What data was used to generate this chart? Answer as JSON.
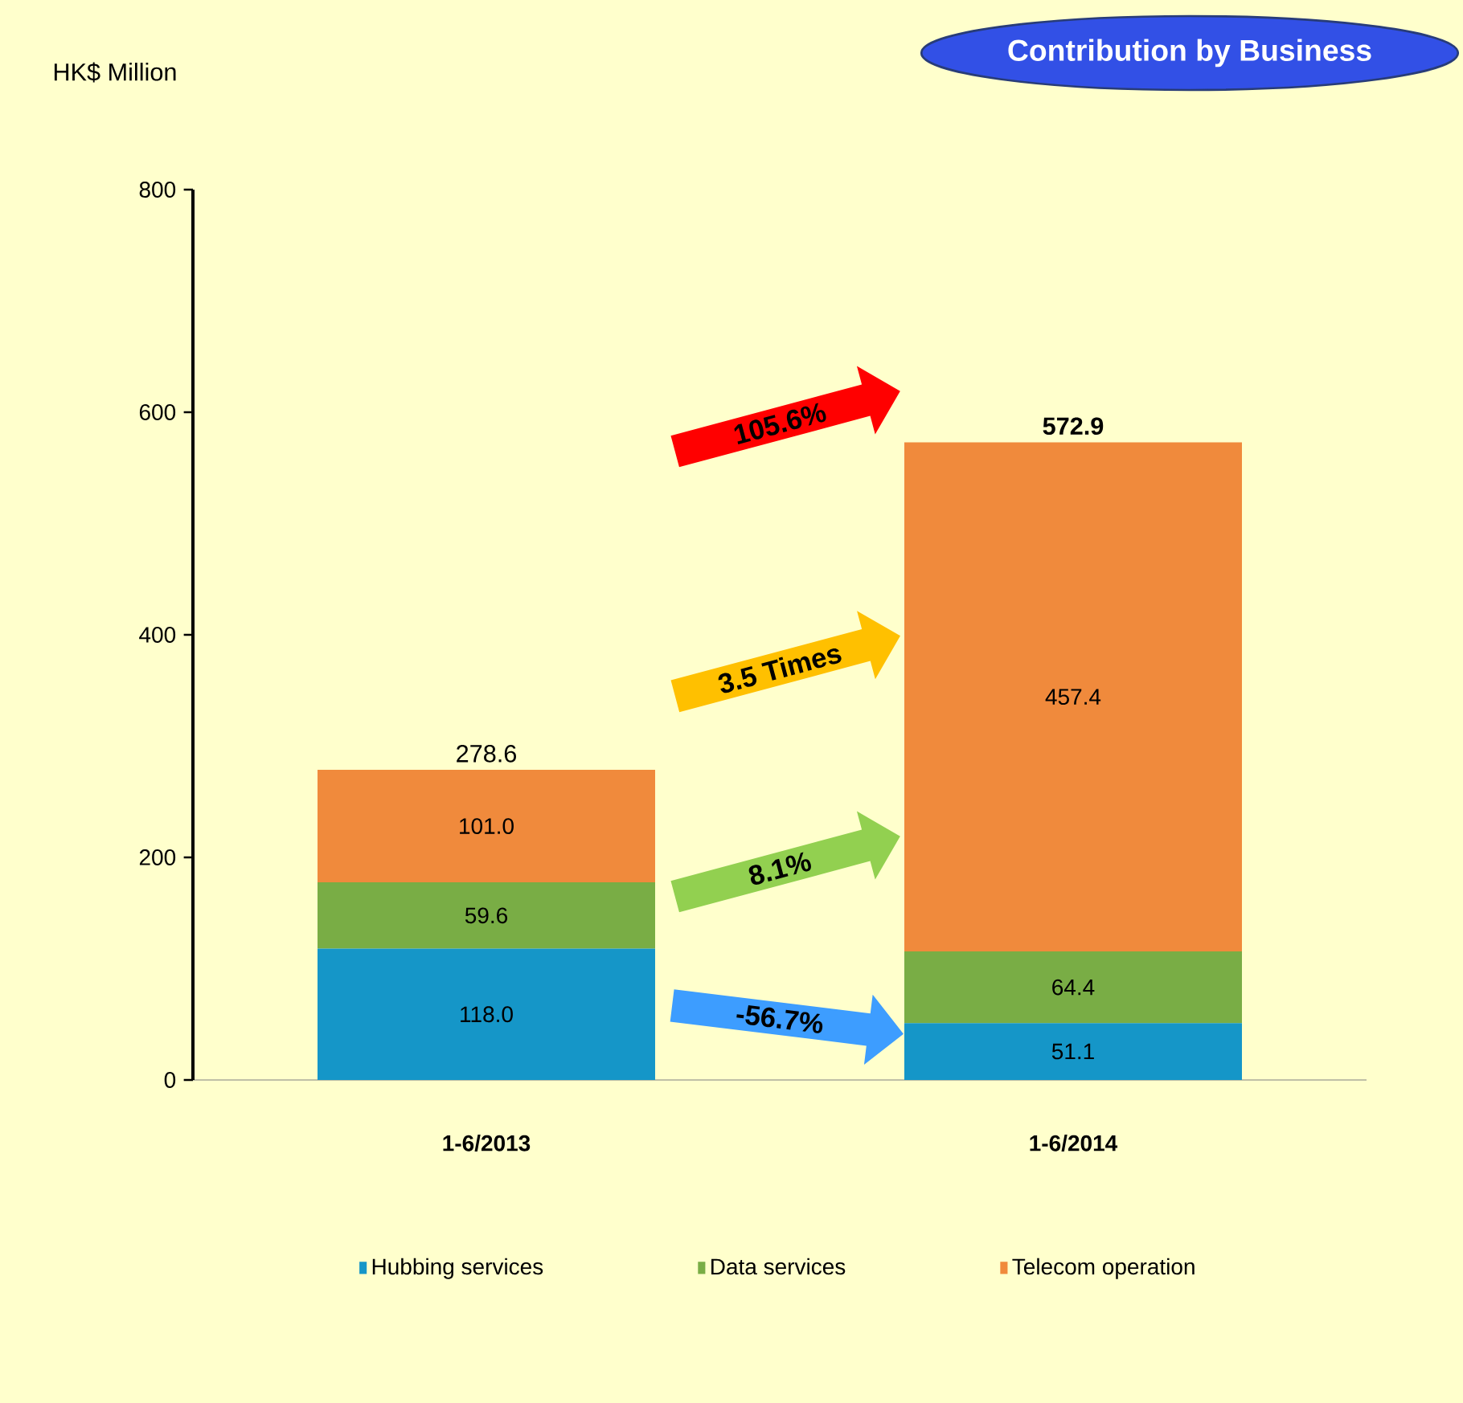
{
  "chart_data": {
    "type": "bar",
    "stacked": true,
    "title": "Contribution by Business",
    "ylabel": "HK$ Million",
    "categories": [
      "1-6/2013",
      "1-6/2014"
    ],
    "series": [
      {
        "name": "Hubbing services",
        "color": "#1596c8",
        "values": [
          118.0,
          51.1
        ],
        "value_labels": [
          "118.0",
          "51.1"
        ]
      },
      {
        "name": "Data services",
        "color": "#79ad45",
        "values": [
          59.6,
          64.4
        ],
        "value_labels": [
          "59.6",
          "64.4"
        ]
      },
      {
        "name": "Telecom operation",
        "color": "#f08a3c",
        "values": [
          101.0,
          457.4
        ],
        "value_labels": [
          "101.0",
          "457.4"
        ]
      }
    ],
    "ylim": [
      0,
      800
    ],
    "yticks": [
      0,
      200,
      400,
      600,
      800
    ],
    "totals": [
      "278.6",
      "572.9"
    ],
    "legend": "bottom",
    "grid": false,
    "annotations": [
      "105.6%",
      "3.5 Times",
      "8.1%",
      "-56.7%"
    ]
  }
}
